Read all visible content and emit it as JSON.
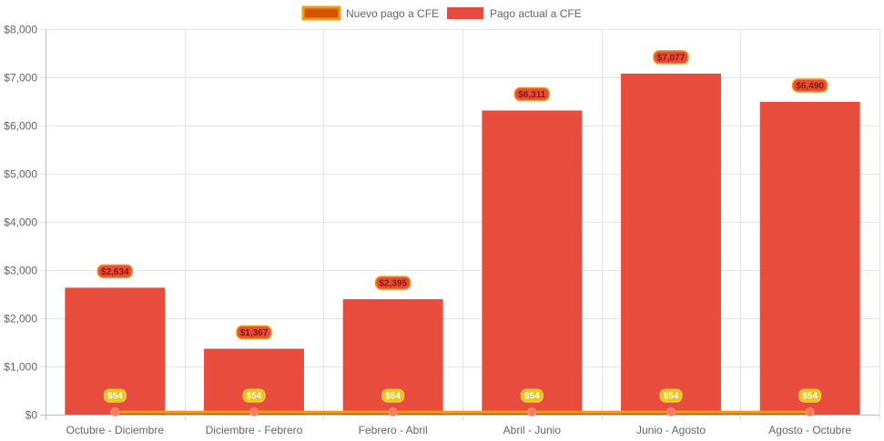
{
  "chart_data": {
    "type": "bar",
    "categories": [
      "Octubre - Diciembre",
      "Diciembre - Febrero",
      "Febrero - Abril",
      "Abril - Junio",
      "Junio - Agosto",
      "Agosto - Octubre"
    ],
    "series": [
      {
        "name": "Nuevo pago a CFE",
        "type": "line",
        "values": [
          54,
          54,
          54,
          54,
          54,
          54
        ],
        "data_labels": [
          "$54",
          "$54",
          "$54",
          "$54",
          "$54",
          "$54"
        ],
        "color": "#f39c12",
        "fill_color": "#d35400",
        "point_color": "#ff7b5c",
        "label_color": "#f1c40f"
      },
      {
        "name": "Pago actual a CFE",
        "type": "bar",
        "values": [
          2634,
          1367,
          2395,
          6311,
          7077,
          6490
        ],
        "data_labels": [
          "$2,634",
          "$1,367",
          "$2,395",
          "$6,311",
          "$7,077",
          "$6,490"
        ],
        "color": "#e74c3c",
        "label_color": "#e74c3c",
        "label_border": "#f39c12"
      }
    ],
    "ylim": [
      0,
      8000
    ],
    "yticks": [
      0,
      1000,
      2000,
      3000,
      4000,
      5000,
      6000,
      7000,
      8000
    ],
    "ytick_labels": [
      "$0",
      "$1,000",
      "$2,000",
      "$3,000",
      "$4,000",
      "$5,000",
      "$6,000",
      "$7,000",
      "$8,000"
    ],
    "grid": true,
    "legend_position": "top-center",
    "title": "",
    "xlabel": "",
    "ylabel": ""
  }
}
